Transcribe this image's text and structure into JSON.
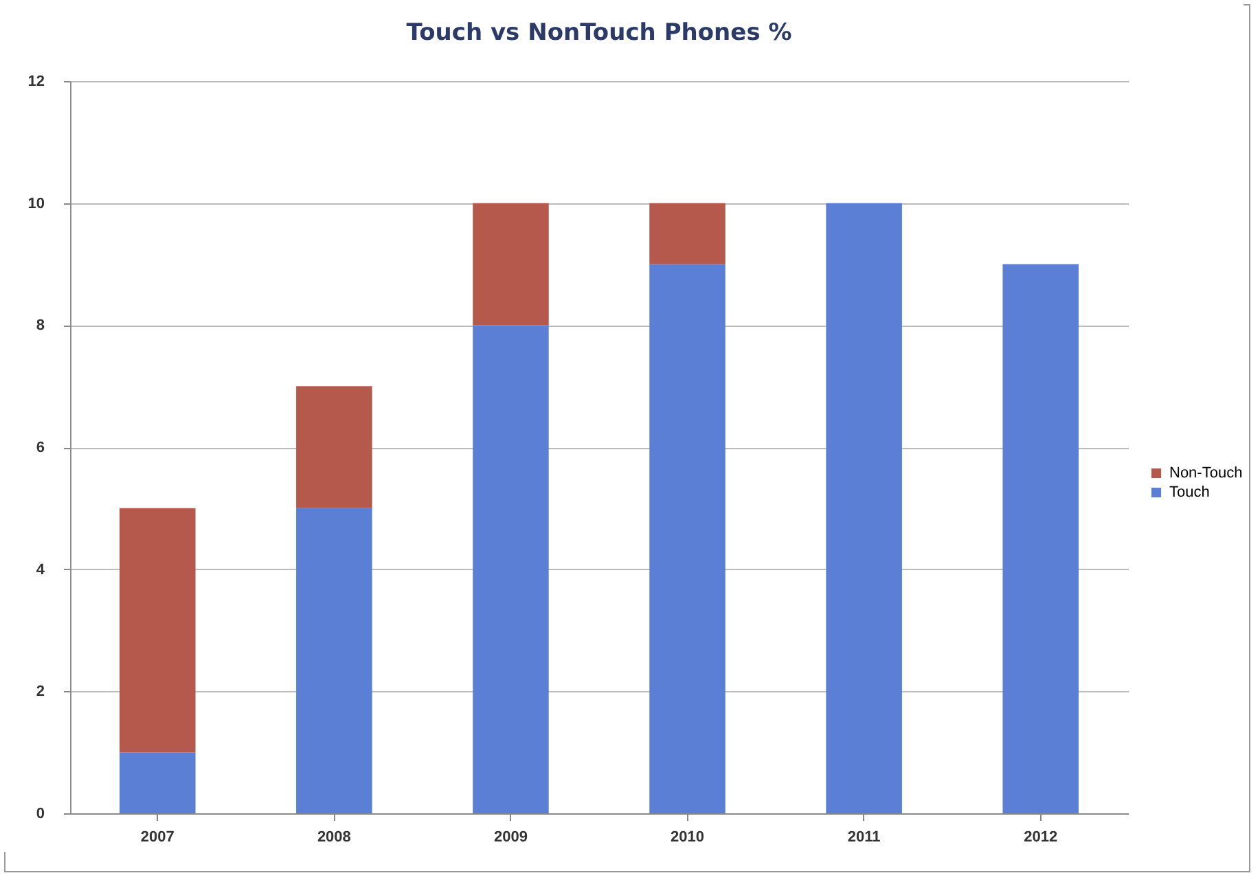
{
  "chart_data": {
    "type": "bar",
    "title": "Touch vs NonTouch Phones %",
    "categories": [
      "2007",
      "2008",
      "2009",
      "2010",
      "2011",
      "2012"
    ],
    "series": [
      {
        "name": "Touch",
        "color": "#5a7fd4",
        "values": [
          1,
          5,
          8,
          9,
          10,
          9
        ]
      },
      {
        "name": "Non-Touch",
        "color": "#b6594d",
        "values": [
          4,
          2,
          2,
          1,
          0,
          0
        ]
      }
    ],
    "stacked": true,
    "ylim": [
      0,
      12
    ],
    "yticks": [
      0,
      2,
      4,
      6,
      8,
      10,
      12
    ],
    "grid": "y",
    "legend": "right"
  }
}
